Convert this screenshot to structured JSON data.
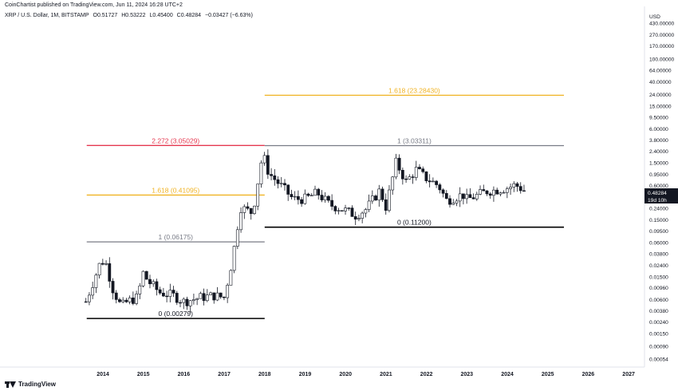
{
  "header": {
    "published": "CoinChartist published on TradingView.com, Jun 11, 2024 16:28 UTC+2"
  },
  "symbol": {
    "name": "XRP / U.S. Dollar, 1M, BITSTAMP",
    "open": "O0.51727",
    "high": "H0.53222",
    "low": "L0.45400",
    "close": "C0.48284",
    "change": "−0.03427 (−6.63%)"
  },
  "footer": {
    "brand": "TradingView"
  },
  "colors": {
    "up": "#ffffff",
    "down": "#131722",
    "wick": "#131722",
    "gold": "#f0b323",
    "red": "#e53950",
    "gray": "#787b86",
    "black": "#000000"
  },
  "chart_data": {
    "type": "candlestick",
    "currency": "USD",
    "scale": "log",
    "y_ticks": [
      "430.00000",
      "270.00000",
      "170.00000",
      "100.00000",
      "64.00000",
      "40.00000",
      "24.00000",
      "15.00000",
      "9.50000",
      "6.00000",
      "3.80000",
      "2.40000",
      "1.50000",
      "0.95000",
      "0.60000",
      "0.38000",
      "0.24000",
      "0.15000",
      "0.09500",
      "0.06000",
      "0.03800",
      "0.02400",
      "0.01500",
      "0.00960",
      "0.00600",
      "0.00380",
      "0.00240",
      "0.00150",
      "0.00090",
      "0.00054"
    ],
    "x_ticks": [
      "2014",
      "2015",
      "2016",
      "2017",
      "2018",
      "2019",
      "2020",
      "2021",
      "2022",
      "2023",
      "2024",
      "2025",
      "2026",
      "2027"
    ],
    "last_price": {
      "value": "0.48284",
      "countdown": "19d 10h"
    },
    "levels": [
      {
        "label": "1.618 (23.28430)",
        "price": 23.2843,
        "from": 2018.0,
        "to": 2025.4,
        "color": "gold"
      },
      {
        "label": "2.272 (3.05029)",
        "price": 3.05029,
        "from": 2013.6,
        "to": 2018.0,
        "color": "red"
      },
      {
        "label": "1 (3.03311)",
        "price": 3.03311,
        "from": 2018.0,
        "to": 2025.4,
        "color": "gray"
      },
      {
        "label": "1.618 (0.41095)",
        "price": 0.41095,
        "from": 2013.6,
        "to": 2018.0,
        "color": "gold"
      },
      {
        "label": "1 (0.06175)",
        "price": 0.06175,
        "from": 2013.6,
        "to": 2018.0,
        "color": "gray"
      },
      {
        "label": "0 (0.11200)",
        "price": 0.112,
        "from": 2018.0,
        "to": 2025.4,
        "color": "black"
      },
      {
        "label": "0 (0.00279)",
        "price": 0.00279,
        "from": 2013.6,
        "to": 2018.0,
        "color": "black"
      }
    ],
    "anchors": [
      {
        "t": 2013.58,
        "p": 0.0055
      },
      {
        "t": 2013.92,
        "p": 0.025
      },
      {
        "t": 2014.05,
        "p": 0.03
      },
      {
        "t": 2014.25,
        "p": 0.009
      },
      {
        "t": 2014.45,
        "p": 0.0045
      },
      {
        "t": 2014.6,
        "p": 0.0055
      },
      {
        "t": 2014.85,
        "p": 0.0065
      },
      {
        "t": 2015.0,
        "p": 0.018
      },
      {
        "t": 2015.1,
        "p": 0.013
      },
      {
        "t": 2015.4,
        "p": 0.008
      },
      {
        "t": 2015.75,
        "p": 0.007
      },
      {
        "t": 2016.0,
        "p": 0.0055
      },
      {
        "t": 2016.4,
        "p": 0.0065
      },
      {
        "t": 2016.75,
        "p": 0.007
      },
      {
        "t": 2017.0,
        "p": 0.0065
      },
      {
        "t": 2017.2,
        "p": 0.03
      },
      {
        "t": 2017.4,
        "p": 0.25
      },
      {
        "t": 2017.7,
        "p": 0.2
      },
      {
        "t": 2017.95,
        "p": 2.2
      },
      {
        "t": 2018.1,
        "p": 1.0
      },
      {
        "t": 2018.4,
        "p": 0.6
      },
      {
        "t": 2018.7,
        "p": 0.35
      },
      {
        "t": 2019.0,
        "p": 0.35
      },
      {
        "t": 2019.3,
        "p": 0.45
      },
      {
        "t": 2019.6,
        "p": 0.28
      },
      {
        "t": 2020.0,
        "p": 0.22
      },
      {
        "t": 2020.25,
        "p": 0.18
      },
      {
        "t": 2020.5,
        "p": 0.23
      },
      {
        "t": 2020.85,
        "p": 0.5
      },
      {
        "t": 2021.0,
        "p": 0.25
      },
      {
        "t": 2021.25,
        "p": 1.55
      },
      {
        "t": 2021.5,
        "p": 0.7
      },
      {
        "t": 2021.75,
        "p": 1.15
      },
      {
        "t": 2021.95,
        "p": 0.85
      },
      {
        "t": 2022.3,
        "p": 0.6
      },
      {
        "t": 2022.5,
        "p": 0.33
      },
      {
        "t": 2022.9,
        "p": 0.42
      },
      {
        "t": 2023.0,
        "p": 0.34
      },
      {
        "t": 2023.5,
        "p": 0.48
      },
      {
        "t": 2023.7,
        "p": 0.5
      },
      {
        "t": 2024.0,
        "p": 0.55
      },
      {
        "t": 2024.2,
        "p": 0.62
      },
      {
        "t": 2024.45,
        "p": 0.48
      }
    ]
  }
}
